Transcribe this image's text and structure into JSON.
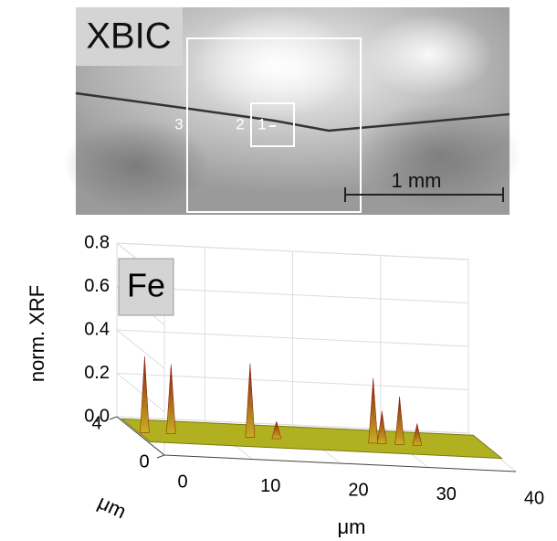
{
  "image_panel": {
    "label": "XBIC",
    "markers": [
      "3",
      "2",
      "1"
    ],
    "scale_bar": "1 mm"
  },
  "chart_data": {
    "type": "surface3d",
    "badge": "Fe",
    "ylabel": "norm. XRF",
    "xlabel": "μm",
    "zlabel": "μm",
    "ylim": [
      0,
      0.8
    ],
    "yticks": [
      {
        "value": 0,
        "label": "0.0"
      },
      0.2,
      0.4,
      0.6,
      0.8
    ],
    "xlim": [
      0,
      40
    ],
    "xticks": [
      0,
      10,
      20,
      30,
      40
    ],
    "zlim": [
      0,
      4
    ],
    "zticks": [
      0,
      4
    ],
    "peaks": {
      "x": [
        1,
        4,
        13,
        16,
        27,
        28,
        30,
        32
      ],
      "values": [
        0.35,
        0.32,
        0.34,
        0.08,
        0.3,
        0.15,
        0.22,
        0.1
      ]
    },
    "color": "#b0b020",
    "peak_color": "#8a1a10",
    "grid": true
  }
}
